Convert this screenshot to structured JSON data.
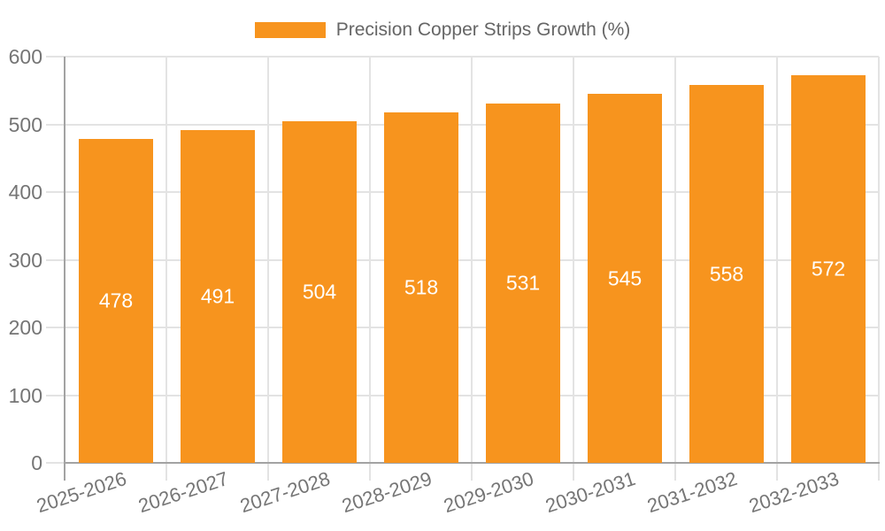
{
  "chart_data": {
    "type": "bar",
    "title": "",
    "legend": "Precision Copper Strips Growth (%)",
    "legend_position": "top-center",
    "categories": [
      "2025-2026",
      "2026-2027",
      "2027-2028",
      "2028-2029",
      "2029-2030",
      "2030-2031",
      "2031-2032",
      "2032-2033"
    ],
    "values": [
      478,
      491,
      504,
      518,
      531,
      545,
      558,
      572
    ],
    "xlabel": "",
    "ylabel": "",
    "ylim": [
      0,
      600
    ],
    "ytick_step": 100,
    "ytick_labels": [
      "0",
      "100",
      "200",
      "300",
      "400",
      "500",
      "600"
    ],
    "grid": true,
    "xtick_rotation_deg": -18,
    "colors": {
      "bar": "#F7941E",
      "grid": "#E3E3E3",
      "axis": "#A3A3A3",
      "tick_text": "#757575",
      "legend_text": "#666666",
      "value_label_text": "#FFFFFF",
      "background": "#FFFFFF"
    }
  }
}
